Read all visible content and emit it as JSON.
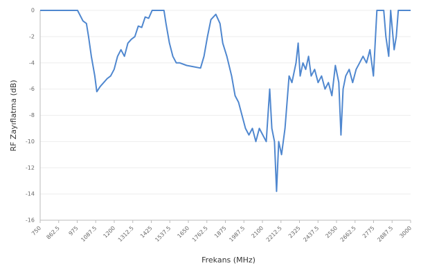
{
  "chart_data": {
    "type": "line",
    "ylabel": "RF Zayıflatma (dB)",
    "xlabel": "Frekans (MHz)",
    "color": "#4f87cf",
    "grid": true,
    "xlim": [
      750,
      3000
    ],
    "ylim": [
      -16,
      0
    ],
    "xticks": [
      750,
      862.5,
      975,
      1087.5,
      1200,
      1312.5,
      1425,
      1537.5,
      1650,
      1762.5,
      1875,
      1987.5,
      2100,
      2212.5,
      2325,
      2437.5,
      2550,
      2662.5,
      2775,
      2887.5,
      3000
    ],
    "yticks": [
      0,
      -2,
      -4,
      -6,
      -8,
      -10,
      -12,
      -14,
      -16
    ],
    "x": [
      750,
      977,
      1010,
      1031,
      1044,
      1061,
      1082,
      1094,
      1115,
      1136,
      1157,
      1178,
      1199,
      1220,
      1241,
      1262,
      1283,
      1304,
      1325,
      1346,
      1367,
      1388,
      1409,
      1430,
      1502,
      1514,
      1535,
      1556,
      1577,
      1598,
      1640,
      1682,
      1724,
      1745,
      1766,
      1787,
      1817,
      1842,
      1859,
      1884,
      1913,
      1934,
      1955,
      1976,
      1997,
      2018,
      2039,
      2060,
      2081,
      2102,
      2123,
      2144,
      2157,
      2173,
      2186,
      2199,
      2216,
      2237,
      2262,
      2279,
      2304,
      2317,
      2329,
      2346,
      2363,
      2380,
      2396,
      2417,
      2438,
      2459,
      2480,
      2501,
      2522,
      2543,
      2564,
      2577,
      2590,
      2606,
      2627,
      2648,
      2669,
      2690,
      2711,
      2732,
      2753,
      2774,
      2795,
      2837,
      2850,
      2867,
      2879,
      2900,
      2913,
      2925,
      3000
    ],
    "values": [
      0,
      0,
      -0.8,
      -1,
      -2,
      -3.5,
      -5,
      -6.2,
      -5.8,
      -5.5,
      -5.2,
      -5,
      -4.5,
      -3.5,
      -3,
      -3.5,
      -2.5,
      -2.2,
      -2,
      -1.2,
      -1.3,
      -0.5,
      -0.6,
      0,
      0,
      -1,
      -2.5,
      -3.5,
      -4,
      -4,
      -4.2,
      -4.3,
      -4.4,
      -3.5,
      -2,
      -0.7,
      -0.3,
      -1,
      -2.5,
      -3.5,
      -5,
      -6.5,
      -7,
      -8,
      -9,
      -9.5,
      -9,
      -10,
      -9,
      -9.5,
      -10,
      -6,
      -9,
      -10,
      -13.8,
      -10,
      -11,
      -9,
      -5,
      -5.5,
      -4,
      -2.5,
      -5,
      -4,
      -4.5,
      -3.5,
      -5,
      -4.5,
      -5.5,
      -5,
      -6,
      -5.5,
      -6.5,
      -4.2,
      -5.5,
      -9.5,
      -6,
      -5,
      -4.5,
      -5.5,
      -4.5,
      -4,
      -3.5,
      -4,
      -3,
      -5,
      0,
      0,
      -2,
      -3.5,
      0,
      -3,
      -2,
      0,
      0
    ]
  }
}
